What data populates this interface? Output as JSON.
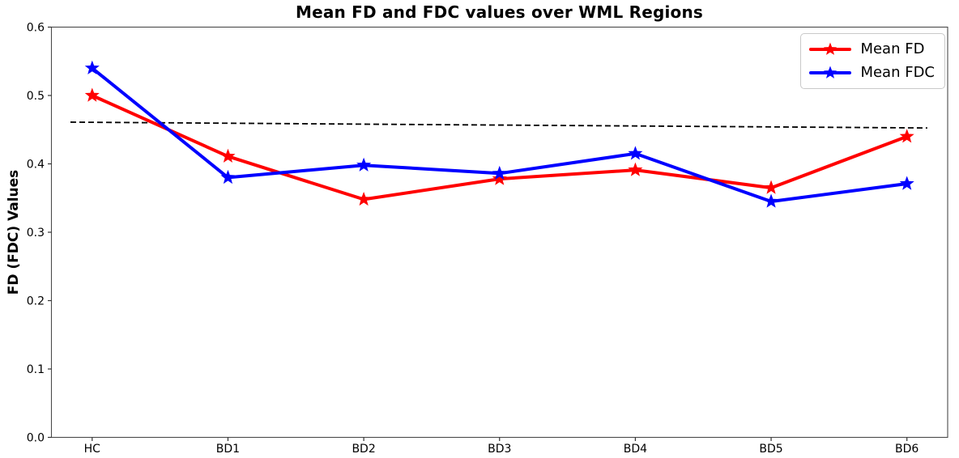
{
  "chart_data": {
    "type": "line",
    "title": "Mean FD and FDC values over WML Regions",
    "xlabel": "",
    "ylabel": "FD (FDC) Values",
    "categories": [
      "HC",
      "BD1",
      "BD2",
      "BD3",
      "BD4",
      "BD5",
      "BD6"
    ],
    "series": [
      {
        "name": "Mean FD",
        "color": "#ff0000",
        "marker": "star",
        "values": [
          0.5,
          0.411,
          0.348,
          0.378,
          0.391,
          0.365,
          0.44
        ]
      },
      {
        "name": "Mean FDC",
        "color": "#0000ff",
        "marker": "star",
        "values": [
          0.54,
          0.38,
          0.398,
          0.386,
          0.415,
          0.345,
          0.371
        ]
      }
    ],
    "reference_line": {
      "style": "dashed",
      "color": "#000000",
      "x_start": -0.16,
      "y_start": 0.461,
      "x_end": 6.15,
      "y_end": 0.4525
    },
    "ylim": [
      0.0,
      0.6
    ],
    "yticks": [
      "0.0",
      "0.1",
      "0.2",
      "0.3",
      "0.4",
      "0.5",
      "0.6"
    ],
    "legend_position": "upper right",
    "grid": false
  }
}
